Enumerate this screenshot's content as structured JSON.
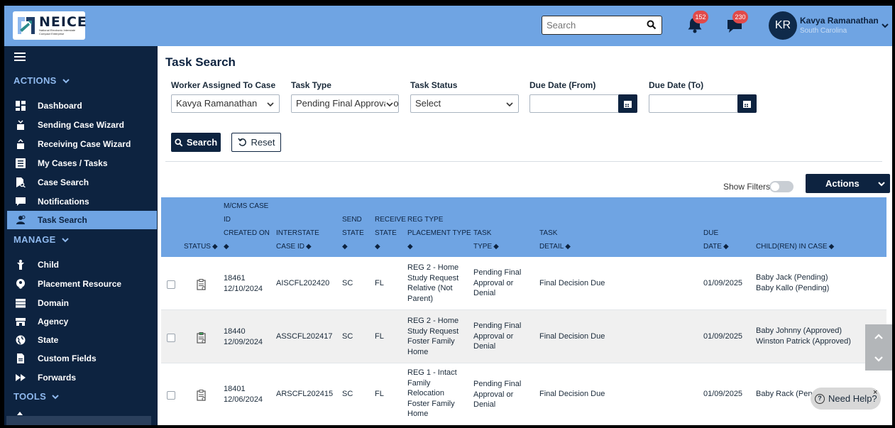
{
  "header": {
    "logo_text": "NEICE",
    "logo_subtitle": "National Electronic Interstate Compact Enterprise",
    "search_placeholder": "Search",
    "notifications_count": "152",
    "messages_count": "230",
    "user_initials": "KR",
    "user_name": "Kavya Ramanathan",
    "user_state": "South Carolina"
  },
  "sidebar": {
    "sections": {
      "actions": "ACTIONS",
      "manage": "MANAGE",
      "tools": "TOOLS"
    },
    "actions_items": [
      {
        "label": "Dashboard",
        "icon": "dashboard-icon"
      },
      {
        "label": "Sending Case Wizard",
        "icon": "sending-wizard-icon"
      },
      {
        "label": "Receiving Case Wizard",
        "icon": "receiving-wizard-icon"
      },
      {
        "label": "My Cases / Tasks",
        "icon": "list-icon"
      },
      {
        "label": "Case Search",
        "icon": "file-search-icon"
      },
      {
        "label": "Notifications",
        "icon": "message-icon"
      },
      {
        "label": "Task Search",
        "icon": "user-search-icon",
        "active": true
      }
    ],
    "manage_items": [
      {
        "label": "Child",
        "icon": "child-icon"
      },
      {
        "label": "Placement Resource",
        "icon": "globe-pin-icon"
      },
      {
        "label": "Domain",
        "icon": "server-icon"
      },
      {
        "label": "Agency",
        "icon": "store-icon"
      },
      {
        "label": "State",
        "icon": "globe-icon"
      },
      {
        "label": "Custom Fields",
        "icon": "document-icon"
      },
      {
        "label": "Forwards",
        "icon": "fast-forward-icon"
      }
    ]
  },
  "page": {
    "title": "Task Search",
    "filters": {
      "worker_label": "Worker Assigned To Case",
      "worker_value": "Kavya Ramanathan",
      "task_type_label": "Task Type",
      "task_type_value": "Pending Final Approval or",
      "task_status_label": "Task Status",
      "task_status_value": "Select",
      "due_from_label": "Due Date (From)",
      "due_to_label": "Due Date (To)"
    },
    "search_button": "Search",
    "reset_button": "Reset",
    "show_filters_label": "Show Filters",
    "actions_button": "Actions"
  },
  "table": {
    "headers": {
      "status": "STATUS",
      "case_id_l1": "M/CMS CASE",
      "case_id_l2": "ID",
      "case_id_l3": "CREATED ON",
      "interstate_l1": "INTERSTATE",
      "interstate_l2": "CASE ID",
      "send_l1": "SEND",
      "send_l2": "STATE",
      "receive_l1": "RECEIVE",
      "receive_l2": "STATE",
      "reg_l1": "REG TYPE",
      "reg_l2": "PLACEMENT TYPE",
      "task_type_l1": "TASK",
      "task_type_l2": "TYPE",
      "task_detail_l1": "TASK",
      "task_detail_l2": "DETAIL",
      "due_l1": "DUE",
      "due_l2": "DATE",
      "children": "CHILD(REN) IN CASE"
    },
    "rows": [
      {
        "case_id": "18461",
        "created": "12/10/2024",
        "interstate": "AISCFL202420",
        "send": "SC",
        "receive": "FL",
        "reg": [
          "REG 2 - Home",
          "Study Request",
          "Relative (Not",
          "Parent)"
        ],
        "task_type": [
          "Pending Final",
          "Approval or",
          "Denial"
        ],
        "task_detail": "Final Decision Due",
        "due": "01/09/2025",
        "children": [
          "Baby Jack (Pending)",
          "Baby Kallo (Pending)"
        ]
      },
      {
        "case_id": "18440",
        "created": "12/09/2024",
        "interstate": "ASSCFL202417",
        "send": "SC",
        "receive": "FL",
        "reg": [
          "REG 2 - Home",
          "Study Request",
          "Foster Family",
          "Home"
        ],
        "task_type": [
          "Pending Final",
          "Approval or",
          "Denial"
        ],
        "task_detail": "Final Decision Due",
        "due": "01/09/2025",
        "children": [
          "Baby Johnny (Approved)",
          "Winston Patrick (Approved)"
        ]
      },
      {
        "case_id": "18401",
        "created": "12/06/2024",
        "interstate": "ARSCFL202415",
        "send": "SC",
        "receive": "FL",
        "reg": [
          "REG 1 - Intact",
          "Family",
          "Relocation",
          "Foster Family",
          "Home"
        ],
        "task_type": [
          "Pending Final",
          "Approval or",
          "Denial"
        ],
        "task_detail": "Final Decision Due",
        "due": "01/09/2025",
        "children": [
          "Baby Rack (Pen"
        ]
      }
    ]
  },
  "help": {
    "label": "Need Help?",
    "close": "×"
  },
  "colors": {
    "navy": "#0d2340",
    "header_blue": "#6fa4e3",
    "badge_red": "#e04a4a"
  }
}
